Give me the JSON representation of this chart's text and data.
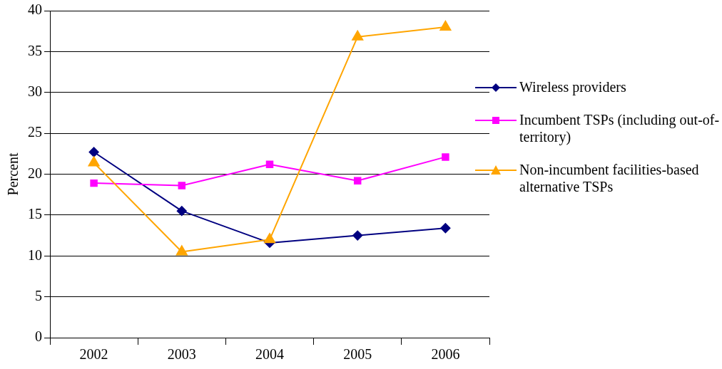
{
  "chart_data": {
    "type": "line",
    "ylabel": "Percent",
    "categories": [
      "2002",
      "2003",
      "2004",
      "2005",
      "2006"
    ],
    "ylim": [
      0,
      40
    ],
    "yticks": [
      0,
      5,
      10,
      15,
      20,
      25,
      30,
      35,
      40
    ],
    "grid": "y",
    "legend": "right",
    "line_style": "solid",
    "series": [
      {
        "name": "Wireless providers",
        "color": "#000080",
        "marker": "diamond",
        "values": [
          22.7,
          15.5,
          11.6,
          12.5,
          13.4
        ]
      },
      {
        "name": "Incumbent TSPs (including out-of-territory)",
        "color": "#ff00ff",
        "marker": "square",
        "values": [
          18.9,
          18.6,
          21.2,
          19.2,
          22.1
        ]
      },
      {
        "name": "Non-incumbent facilities-based alternative TSPs",
        "color": "#ffa500",
        "marker": "triangle",
        "values": [
          21.4,
          10.5,
          12.0,
          36.8,
          38.0
        ]
      }
    ]
  }
}
